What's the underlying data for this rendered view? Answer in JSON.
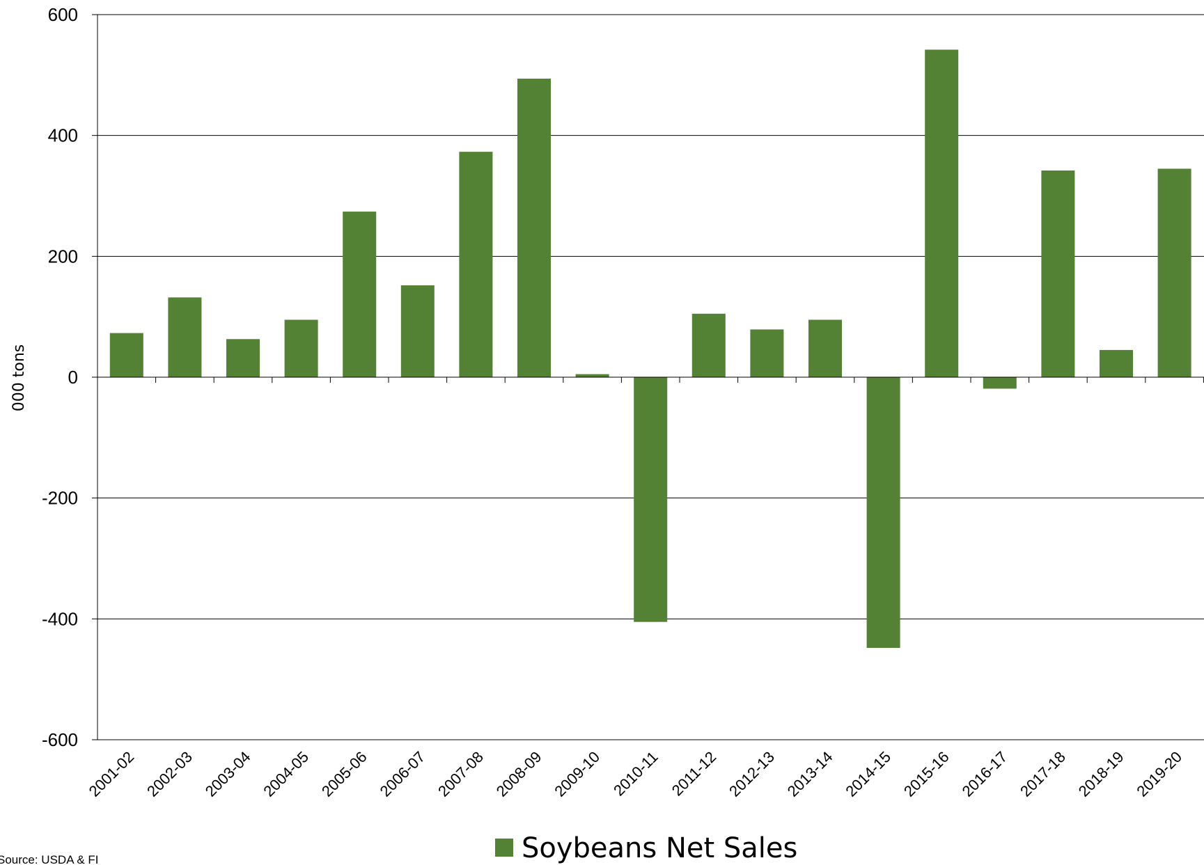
{
  "chart_data": {
    "type": "bar",
    "title": "",
    "xlabel": "",
    "ylabel": "000 tons",
    "ylim": [
      -600,
      600
    ],
    "yticks": [
      600,
      400,
      200,
      0,
      -200,
      -400,
      -600
    ],
    "grid": true,
    "legend_position": "bottom-center",
    "categories": [
      "2001-02",
      "2002-03",
      "2003-04",
      "2004-05",
      "2005-06",
      "2006-07",
      "2007-08",
      "2008-09",
      "2009-10",
      "2010-11",
      "2011-12",
      "2012-13",
      "2013-14",
      "2014-15",
      "2015-16",
      "2016-17",
      "2017-18",
      "2018-19",
      "2019-20"
    ],
    "series": [
      {
        "name": "Soybeans Net Sales",
        "color": "#548235",
        "values": [
          73,
          132,
          63,
          95,
          274,
          152,
          373,
          494,
          5,
          -405,
          105,
          79,
          95,
          -448,
          542,
          -19,
          342,
          45,
          345
        ]
      }
    ],
    "source": "Source: USDA & FI"
  }
}
